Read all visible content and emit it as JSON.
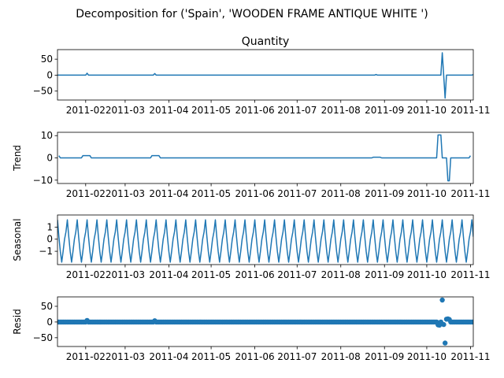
{
  "figure": {
    "suptitle": "Decomposition for ('Spain', 'WOODEN FRAME ANTIQUE WHITE ')"
  },
  "colors": {
    "series": "#1f77b4",
    "axis": "#000000"
  },
  "chart_data": [
    {
      "type": "line",
      "panel": "observed",
      "title": "Quantity",
      "ylabel": "",
      "ylim": [
        -78,
        80
      ],
      "yticks": [
        50,
        0,
        -50
      ],
      "xlim": [
        "2011-01-12",
        "2011-11-03"
      ],
      "xticks": [
        "2011-02",
        "2011-03",
        "2011-04",
        "2011-05",
        "2011-06",
        "2011-07",
        "2011-08",
        "2011-09",
        "2011-10",
        "2011-11"
      ],
      "x": [
        "2011-01-12",
        "2011-02-01",
        "2011-02-02",
        "2011-02-03",
        "2011-03-21",
        "2011-03-22",
        "2011-03-23",
        "2011-08-25",
        "2011-08-26",
        "2011-08-27",
        "2011-10-11",
        "2011-10-12",
        "2011-10-13",
        "2011-10-14",
        "2011-10-15",
        "2011-11-02",
        "2011-11-03"
      ],
      "values": [
        0,
        0,
        6,
        0,
        0,
        5,
        0,
        0,
        2,
        0,
        0,
        70,
        0,
        -72,
        0,
        0,
        2
      ]
    },
    {
      "type": "line",
      "panel": "trend",
      "title": "",
      "ylabel": "Trend",
      "ylim": [
        -11.5,
        11.5
      ],
      "yticks": [
        10,
        0,
        -10
      ],
      "xlim": [
        "2011-01-12",
        "2011-11-03"
      ],
      "xticks": [
        "2011-02",
        "2011-03",
        "2011-04",
        "2011-05",
        "2011-06",
        "2011-07",
        "2011-08",
        "2011-09",
        "2011-10",
        "2011-11"
      ],
      "x": [
        "2011-01-13",
        "2011-01-14",
        "2011-01-29",
        "2011-01-30",
        "2011-02-04",
        "2011-02-05",
        "2011-03-19",
        "2011-03-20",
        "2011-03-25",
        "2011-03-26",
        "2011-08-23",
        "2011-08-24",
        "2011-08-29",
        "2011-08-30",
        "2011-10-08",
        "2011-10-09",
        "2011-10-11",
        "2011-10-12",
        "2011-10-15",
        "2011-10-16",
        "2011-10-17",
        "2011-10-18",
        "2011-10-31",
        "2011-11-01"
      ],
      "values": [
        1,
        0,
        0,
        1,
        1,
        0,
        0,
        1,
        1,
        0,
        0,
        0.3,
        0.3,
        0,
        0,
        10.3,
        10.3,
        0,
        0,
        -10.3,
        -10.3,
        0,
        0,
        1
      ]
    },
    {
      "type": "line",
      "panel": "seasonal",
      "title": "",
      "ylabel": "Seasonal",
      "ylim": [
        -2.1,
        2.0
      ],
      "yticks": [
        1,
        0,
        -1
      ],
      "xlim": [
        "2011-01-12",
        "2011-11-03"
      ],
      "xticks": [
        "2011-02",
        "2011-03",
        "2011-04",
        "2011-05",
        "2011-06",
        "2011-07",
        "2011-08",
        "2011-09",
        "2011-10",
        "2011-11"
      ],
      "period_days": 7,
      "first_peak": "2011-01-12",
      "pattern": [
        1.6,
        0.2,
        -1.0,
        -1.9,
        -1.0,
        0.0,
        0.6
      ]
    },
    {
      "type": "scatter",
      "panel": "resid",
      "title": "",
      "ylabel": "Resid",
      "ylim": [
        -78,
        80
      ],
      "yticks": [
        50,
        0,
        -50
      ],
      "xlim": [
        "2011-01-12",
        "2011-11-03"
      ],
      "xticks": [
        "2011-02",
        "2011-03",
        "2011-04",
        "2011-05",
        "2011-06",
        "2011-07",
        "2011-08",
        "2011-09",
        "2011-10",
        "2011-11"
      ],
      "baseline": 0,
      "outliers": [
        {
          "x": "2011-02-02",
          "y": 5
        },
        {
          "x": "2011-03-22",
          "y": 4
        },
        {
          "x": "2011-10-09",
          "y": -9
        },
        {
          "x": "2011-10-10",
          "y": -10
        },
        {
          "x": "2011-10-12",
          "y": 70
        },
        {
          "x": "2011-10-13",
          "y": -8
        },
        {
          "x": "2011-10-14",
          "y": -67
        },
        {
          "x": "2011-10-15",
          "y": 9
        },
        {
          "x": "2011-10-16",
          "y": 10
        },
        {
          "x": "2011-10-17",
          "y": 8
        }
      ]
    }
  ]
}
